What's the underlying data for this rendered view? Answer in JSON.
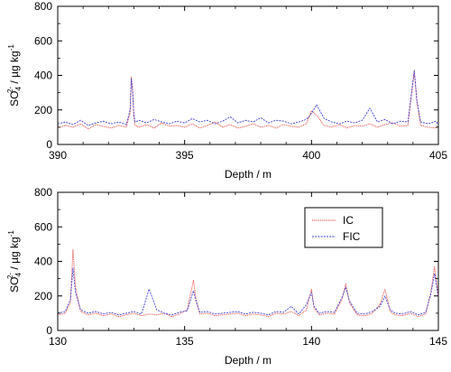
{
  "chart_data": [
    {
      "type": "line",
      "xlabel": "Depth / m",
      "ylabel": "SO",
      "ylabel_sub": "4",
      "ylabel_sup": "2-",
      "ylabel_unit": " / µg kg",
      "ylabel_unit_sup": "-1",
      "xlim": [
        390,
        405
      ],
      "ylim": [
        0,
        800
      ],
      "xticks": [
        390,
        395,
        400,
        405
      ],
      "yticks": [
        0,
        200,
        400,
        600,
        800
      ],
      "xtick_labels": [
        "390",
        "395",
        "400",
        "405"
      ],
      "ytick_labels": [
        "0",
        "200",
        "400",
        "600",
        "800"
      ],
      "grid": false,
      "series": [
        {
          "name": "IC",
          "color": "#e8413c",
          "x": [
            390,
            390.3,
            390.6,
            390.9,
            391.2,
            391.5,
            391.8,
            392.1,
            392.4,
            392.7,
            392.85,
            392.9,
            392.95,
            393.0,
            393.05,
            393.2,
            393.5,
            393.8,
            394.1,
            394.4,
            394.7,
            395.0,
            395.3,
            395.6,
            395.9,
            396.2,
            396.5,
            396.8,
            397.1,
            397.4,
            397.7,
            398.0,
            398.3,
            398.6,
            398.9,
            399.2,
            399.5,
            399.8,
            400.0,
            400.2,
            400.5,
            400.8,
            401.1,
            401.4,
            401.7,
            402.0,
            402.3,
            402.6,
            402.9,
            403.2,
            403.5,
            403.8,
            403.95,
            404.05,
            404.15,
            404.3,
            404.6,
            404.9,
            405
          ],
          "y": [
            95,
            110,
            100,
            120,
            90,
            115,
            105,
            95,
            110,
            100,
            180,
            390,
            320,
            160,
            110,
            100,
            115,
            95,
            125,
            105,
            110,
            100,
            120,
            95,
            110,
            130,
            100,
            115,
            95,
            105,
            120,
            100,
            110,
            95,
            115,
            105,
            100,
            120,
            195,
            170,
            110,
            100,
            115,
            95,
            110,
            105,
            120,
            100,
            115,
            125,
            105,
            110,
            300,
            420,
            250,
            110,
            100,
            95,
            105
          ]
        },
        {
          "name": "FIC",
          "color": "#3b3bd8",
          "x": [
            390,
            390.3,
            390.6,
            390.9,
            391.2,
            391.5,
            391.8,
            392.1,
            392.4,
            392.7,
            392.85,
            392.9,
            392.95,
            393.0,
            393.05,
            393.2,
            393.5,
            393.8,
            394.1,
            394.4,
            394.7,
            395.0,
            395.3,
            395.6,
            395.9,
            396.2,
            396.5,
            396.8,
            397.1,
            397.4,
            397.7,
            398.0,
            398.3,
            398.6,
            398.9,
            399.2,
            399.5,
            399.8,
            400.0,
            400.2,
            400.5,
            400.8,
            401.1,
            401.4,
            401.7,
            402.0,
            402.3,
            402.6,
            402.9,
            403.2,
            403.5,
            403.8,
            403.95,
            404.05,
            404.15,
            404.3,
            404.6,
            404.9,
            405
          ],
          "y": [
            120,
            130,
            115,
            140,
            110,
            125,
            135,
            120,
            130,
            115,
            200,
            380,
            310,
            170,
            130,
            140,
            125,
            145,
            130,
            120,
            135,
            125,
            150,
            130,
            140,
            120,
            135,
            160,
            125,
            140,
            130,
            155,
            125,
            140,
            135,
            120,
            130,
            145,
            180,
            230,
            150,
            130,
            120,
            135,
            125,
            140,
            210,
            130,
            145,
            120,
            135,
            130,
            310,
            430,
            260,
            130,
            120,
            135,
            115
          ]
        }
      ]
    },
    {
      "type": "line",
      "xlabel": "Depth / m",
      "ylabel": "SO",
      "ylabel_sub": "4",
      "ylabel_sup": "2-",
      "ylabel_unit": " / µg kg",
      "ylabel_unit_sup": "-1",
      "xlim": [
        130,
        145
      ],
      "ylim": [
        0,
        800
      ],
      "xticks": [
        130,
        135,
        140,
        145
      ],
      "yticks": [
        0,
        200,
        400,
        600,
        800
      ],
      "xtick_labels": [
        "130",
        "135",
        "140",
        "145"
      ],
      "ytick_labels": [
        "0",
        "200",
        "400",
        "600",
        "800"
      ],
      "grid": false,
      "legend": "inside-upper-right",
      "series": [
        {
          "name": "IC",
          "color": "#e8413c",
          "x": [
            130,
            130.3,
            130.5,
            130.6,
            130.7,
            130.9,
            131.2,
            131.5,
            131.8,
            132.1,
            132.4,
            132.7,
            133.0,
            133.3,
            133.6,
            133.9,
            134.2,
            134.5,
            134.8,
            135.1,
            135.35,
            135.45,
            135.6,
            135.9,
            136.2,
            136.5,
            136.8,
            137.1,
            137.4,
            137.7,
            138.0,
            138.3,
            138.6,
            138.9,
            139.2,
            139.5,
            139.8,
            140.0,
            140.1,
            140.3,
            140.6,
            140.9,
            141.2,
            141.35,
            141.5,
            141.8,
            142.1,
            142.4,
            142.7,
            142.9,
            143.1,
            143.3,
            143.6,
            143.9,
            144.2,
            144.5,
            144.7,
            144.85,
            145
          ],
          "y": [
            90,
            100,
            160,
            470,
            250,
            110,
            90,
            100,
            85,
            95,
            80,
            90,
            100,
            85,
            95,
            90,
            100,
            80,
            95,
            120,
            290,
            180,
            95,
            100,
            85,
            90,
            95,
            100,
            85,
            95,
            90,
            80,
            100,
            95,
            110,
            85,
            120,
            240,
            130,
            90,
            100,
            95,
            180,
            270,
            160,
            90,
            85,
            100,
            150,
            240,
            110,
            90,
            85,
            100,
            80,
            95,
            220,
            370,
            200
          ]
        },
        {
          "name": "FIC",
          "color": "#3b3bd8",
          "x": [
            130,
            130.3,
            130.5,
            130.6,
            130.7,
            130.9,
            131.2,
            131.5,
            131.8,
            132.1,
            132.4,
            132.7,
            133.0,
            133.3,
            133.6,
            133.9,
            134.2,
            134.5,
            134.8,
            135.1,
            135.35,
            135.45,
            135.6,
            135.9,
            136.2,
            136.5,
            136.8,
            137.1,
            137.4,
            137.7,
            138.0,
            138.3,
            138.6,
            138.9,
            139.2,
            139.5,
            139.8,
            140.0,
            140.1,
            140.3,
            140.6,
            140.9,
            141.2,
            141.35,
            141.5,
            141.8,
            142.1,
            142.4,
            142.7,
            142.9,
            143.1,
            143.3,
            143.6,
            143.9,
            144.2,
            144.5,
            144.7,
            144.85,
            145
          ],
          "y": [
            100,
            110,
            180,
            360,
            220,
            120,
            100,
            110,
            95,
            105,
            90,
            100,
            110,
            95,
            240,
            120,
            100,
            90,
            105,
            115,
            230,
            170,
            105,
            110,
            95,
            100,
            105,
            110,
            95,
            105,
            100,
            90,
            110,
            105,
            140,
            95,
            150,
            220,
            140,
            100,
            110,
            105,
            190,
            250,
            170,
            100,
            95,
            110,
            140,
            200,
            120,
            100,
            95,
            110,
            90,
            105,
            210,
            330,
            190
          ]
        }
      ]
    }
  ]
}
